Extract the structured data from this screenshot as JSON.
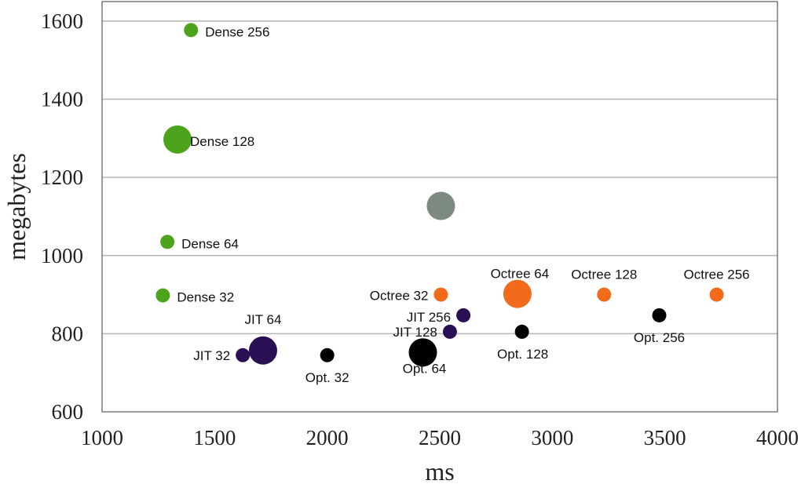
{
  "chart_data": {
    "type": "scatter",
    "xlabel": "ms",
    "ylabel": "megabytes",
    "xlim": [
      1000,
      4000
    ],
    "ylim": [
      600,
      1650
    ],
    "xticks": [
      1000,
      1500,
      2000,
      2500,
      3000,
      3500,
      4000
    ],
    "yticks": [
      600,
      800,
      1000,
      1200,
      1400,
      1600
    ],
    "grid": "horizontal",
    "colors": {
      "dense": "#4ea31c",
      "jit": "#2a0f54",
      "octree": "#f26b1d",
      "opt": "#000000",
      "other": "#7c8a80"
    },
    "points": [
      {
        "label": "Dense 32",
        "x": 1270,
        "y": 898,
        "size": "small",
        "group": "dense"
      },
      {
        "label": "Dense 64",
        "x": 1290,
        "y": 1035,
        "size": "small",
        "group": "dense"
      },
      {
        "label": "Dense 128",
        "x": 1335,
        "y": 1297,
        "size": "large",
        "group": "dense"
      },
      {
        "label": "Dense 256",
        "x": 1395,
        "y": 1577,
        "size": "small",
        "group": "dense"
      },
      {
        "label": "JIT 32",
        "x": 1625,
        "y": 745,
        "size": "small",
        "group": "jit"
      },
      {
        "label": "JIT 64",
        "x": 1715,
        "y": 757,
        "size": "large",
        "group": "jit"
      },
      {
        "label": "JIT 128",
        "x": 2545,
        "y": 805,
        "size": "small",
        "group": "jit"
      },
      {
        "label": "JIT 256",
        "x": 2605,
        "y": 847,
        "size": "small",
        "group": "jit"
      },
      {
        "label": "Opt. 32",
        "x": 2000,
        "y": 745,
        "size": "small",
        "group": "opt"
      },
      {
        "label": "Opt. 64",
        "x": 2425,
        "y": 752,
        "size": "large",
        "group": "opt"
      },
      {
        "label": "Opt. 128",
        "x": 2865,
        "y": 805,
        "size": "small",
        "group": "opt"
      },
      {
        "label": "Opt. 256",
        "x": 3475,
        "y": 847,
        "size": "small",
        "group": "opt"
      },
      {
        "label": "Octree 32",
        "x": 2505,
        "y": 900,
        "size": "small",
        "group": "octree"
      },
      {
        "label": "Octree 64",
        "x": 2845,
        "y": 902,
        "size": "large",
        "group": "octree"
      },
      {
        "label": "Octree 128",
        "x": 3230,
        "y": 900,
        "size": "small",
        "group": "octree"
      },
      {
        "label": "Octree 256",
        "x": 3730,
        "y": 900,
        "size": "small",
        "group": "octree"
      },
      {
        "label": "",
        "x": 2505,
        "y": 1127,
        "size": "large",
        "group": "other"
      }
    ]
  }
}
